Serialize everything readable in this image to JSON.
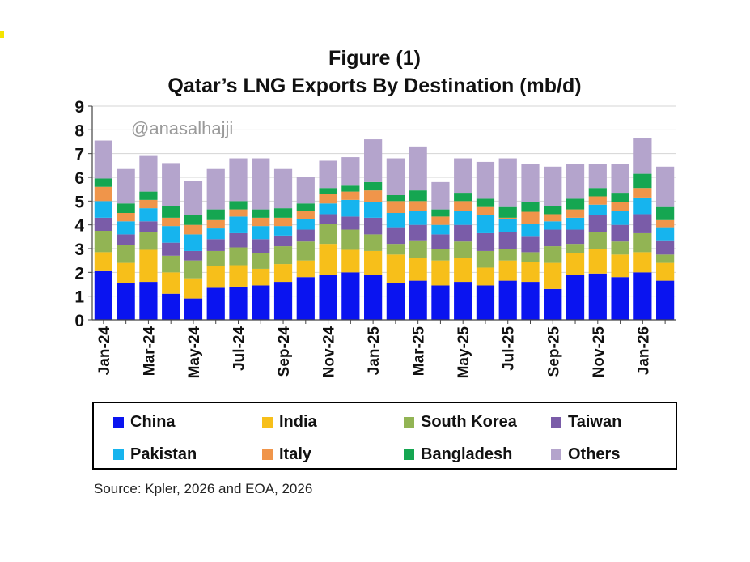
{
  "chart_data": {
    "type": "bar",
    "stacked": true,
    "title_line1": "Figure (1)",
    "title_line2": "Qatar’s LNG Exports By Destination  (mb/d)",
    "watermark": "@anasalhajji",
    "source": "Source: Kpler, 2026 and EOA, 2026",
    "ylim": [
      0,
      9
    ],
    "yticks": [
      "0",
      "1",
      "2",
      "3",
      "4",
      "5",
      "6",
      "7",
      "8",
      "9"
    ],
    "grid": true,
    "legend_position": "bottom",
    "categories": [
      "Jan-24",
      "Feb-24",
      "Mar-24",
      "Apr-24",
      "May-24",
      "Jun-24",
      "Jul-24",
      "Aug-24",
      "Sep-24",
      "Oct-24",
      "Nov-24",
      "Dec-24",
      "Jan-25",
      "Feb-25",
      "Mar-25",
      "Apr-25",
      "May-25",
      "Jun-25",
      "Jul-25",
      "Aug-25",
      "Sep-25",
      "Oct-25",
      "Nov-25",
      "Dec-25",
      "Jan-26",
      "Feb-26"
    ],
    "tick_labels": [
      "Jan-24",
      "",
      "Mar-24",
      "",
      "May-24",
      "",
      "Jul-24",
      "",
      "Sep-24",
      "",
      "Nov-24",
      "",
      "Jan-25",
      "",
      "Mar-25",
      "",
      "May-25",
      "",
      "Jul-25",
      "",
      "Sep-25",
      "",
      "Nov-25",
      "",
      "Jan-26",
      ""
    ],
    "series": [
      {
        "name": "China",
        "color": "#0a14f0",
        "values": [
          2.05,
          1.55,
          1.6,
          1.1,
          0.9,
          1.35,
          1.4,
          1.45,
          1.6,
          1.8,
          1.9,
          2.0,
          1.9,
          1.55,
          1.65,
          1.45,
          1.6,
          1.45,
          1.65,
          1.6,
          1.3,
          1.9,
          1.95,
          1.8,
          2.0,
          1.65
        ]
      },
      {
        "name": "India",
        "color": "#f7bf1a",
        "values": [
          0.8,
          0.85,
          1.35,
          0.9,
          0.85,
          0.9,
          0.9,
          0.7,
          0.75,
          0.7,
          1.3,
          0.95,
          1.0,
          1.2,
          0.95,
          1.05,
          1.0,
          0.75,
          0.85,
          0.85,
          1.1,
          0.9,
          1.05,
          0.95,
          0.85,
          0.75
        ]
      },
      {
        "name": "South Korea",
        "color": "#92b454",
        "values": [
          0.9,
          0.75,
          0.75,
          0.7,
          0.75,
          0.65,
          0.75,
          0.65,
          0.75,
          0.8,
          0.85,
          0.85,
          0.7,
          0.45,
          0.75,
          0.5,
          0.7,
          0.7,
          0.5,
          0.4,
          0.7,
          0.4,
          0.7,
          0.55,
          0.8,
          0.35
        ]
      },
      {
        "name": "Taiwan",
        "color": "#7a5ca8",
        "values": [
          0.55,
          0.45,
          0.45,
          0.55,
          0.4,
          0.5,
          0.6,
          0.6,
          0.45,
          0.5,
          0.4,
          0.55,
          0.7,
          0.7,
          0.65,
          0.6,
          0.7,
          0.75,
          0.7,
          0.65,
          0.7,
          0.6,
          0.7,
          0.7,
          0.8,
          0.6
        ]
      },
      {
        "name": "Pakistan",
        "color": "#16b4ee",
        "values": [
          0.7,
          0.55,
          0.55,
          0.7,
          0.7,
          0.45,
          0.7,
          0.55,
          0.4,
          0.45,
          0.45,
          0.7,
          0.65,
          0.6,
          0.6,
          0.4,
          0.6,
          0.75,
          0.55,
          0.55,
          0.35,
          0.5,
          0.45,
          0.6,
          0.7,
          0.55
        ]
      },
      {
        "name": "Italy",
        "color": "#f0954a",
        "values": [
          0.6,
          0.35,
          0.35,
          0.35,
          0.4,
          0.35,
          0.3,
          0.35,
          0.35,
          0.35,
          0.4,
          0.35,
          0.5,
          0.5,
          0.4,
          0.35,
          0.4,
          0.35,
          0.05,
          0.5,
          0.3,
          0.35,
          0.35,
          0.35,
          0.4,
          0.3
        ]
      },
      {
        "name": "Bangladesh",
        "color": "#15a651",
        "values": [
          0.35,
          0.4,
          0.35,
          0.5,
          0.4,
          0.45,
          0.35,
          0.35,
          0.4,
          0.3,
          0.25,
          0.25,
          0.35,
          0.25,
          0.45,
          0.3,
          0.35,
          0.35,
          0.45,
          0.4,
          0.35,
          0.45,
          0.35,
          0.4,
          0.6,
          0.55
        ]
      },
      {
        "name": "Others",
        "color": "#b4a4cc",
        "values": [
          1.6,
          1.45,
          1.5,
          1.8,
          1.45,
          1.7,
          1.8,
          2.15,
          1.65,
          1.1,
          1.15,
          1.2,
          1.8,
          1.55,
          1.85,
          1.15,
          1.45,
          1.55,
          2.05,
          1.6,
          1.65,
          1.45,
          1.0,
          1.2,
          1.5,
          1.7
        ]
      }
    ]
  },
  "decor": {
    "corner_mark_color": "#f5e400"
  }
}
